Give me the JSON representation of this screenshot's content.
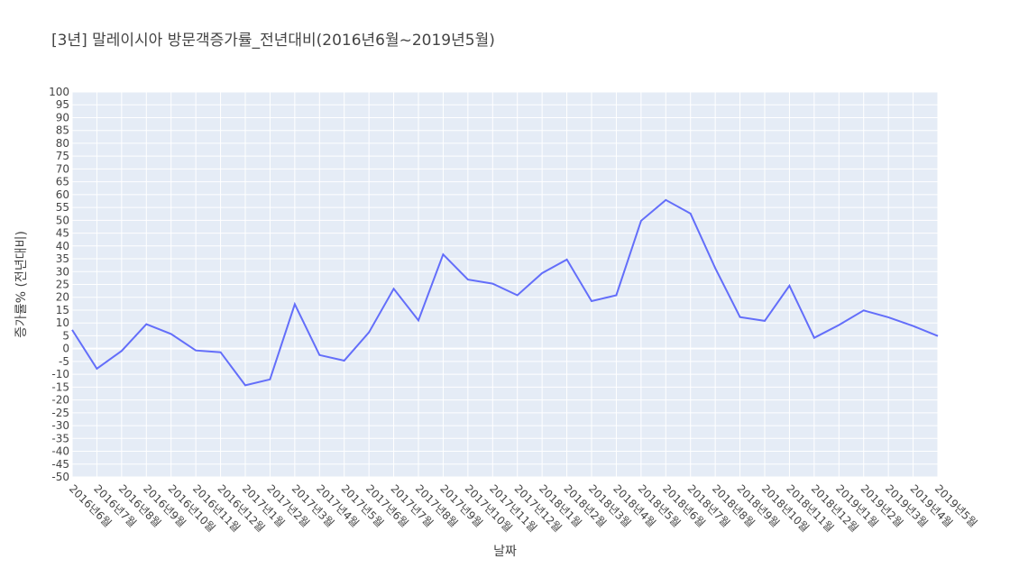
{
  "chart_data": {
    "type": "line",
    "title": "[3년] 말레이시아 방문객증가률_전년대비(2016년6월~2019년5월)",
    "xlabel": "날짜",
    "ylabel": "증가률% (전년대비)",
    "ylim": [
      -50,
      100
    ],
    "ytick_step": 5,
    "grid": true,
    "line_color": "#636efa",
    "plot_background": "#e5ecf6",
    "categories": [
      "2016년6월",
      "2016년7월",
      "2016년8월",
      "2016년9월",
      "2016년10월",
      "2016년11월",
      "2016년12월",
      "2017년1월",
      "2017년2월",
      "2017년3월",
      "2017년4월",
      "2017년5월",
      "2017년6월",
      "2017년7월",
      "2017년8월",
      "2017년9월",
      "2017년10월",
      "2017년11월",
      "2017년12월",
      "2018년1월",
      "2018년2월",
      "2018년3월",
      "2018년4월",
      "2018년5월",
      "2018년6월",
      "2018년7월",
      "2018년8월",
      "2018년9월",
      "2018년10월",
      "2018년11월",
      "2018년12월",
      "2019년1월",
      "2019년2월",
      "2019년3월",
      "2019년4월",
      "2019년5월"
    ],
    "series": [
      {
        "values": [
          7.3,
          -7.8,
          -0.9,
          9.5,
          5.7,
          -0.7,
          -1.4,
          -14.3,
          -12.0,
          17.3,
          -2.5,
          -4.7,
          6.3,
          23.3,
          11.0,
          36.7,
          26.9,
          25.3,
          20.8,
          29.4,
          34.7,
          18.5,
          20.8,
          49.8,
          57.9,
          52.6,
          31.4,
          12.3,
          10.8,
          24.5,
          4.2,
          9.2,
          14.9,
          12.2,
          8.8,
          4.9
        ]
      }
    ]
  }
}
